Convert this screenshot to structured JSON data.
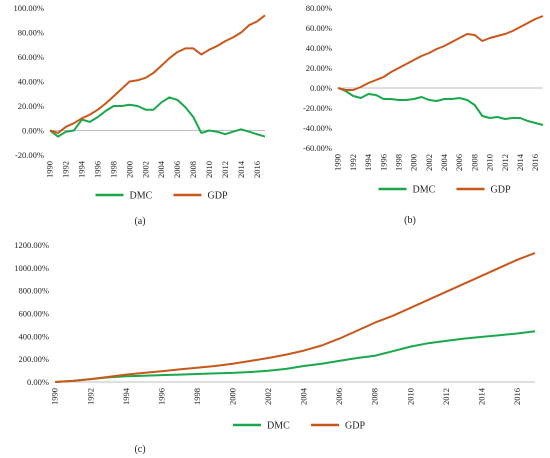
{
  "colors": {
    "DMC": "#1aa84a",
    "GDP": "#c8581a",
    "axis": "#bfbfbf",
    "text": "#222222"
  },
  "chart_data": [
    {
      "type": "line",
      "panel_label": "(a)",
      "x": [
        1990,
        1991,
        1992,
        1993,
        1994,
        1995,
        1996,
        1997,
        1998,
        1999,
        2000,
        2001,
        2002,
        2003,
        2004,
        2005,
        2006,
        2007,
        2008,
        2009,
        2010,
        2011,
        2012,
        2013,
        2014,
        2015,
        2016,
        2017
      ],
      "ylim": [
        -20,
        100
      ],
      "yticks": [
        -20,
        0,
        20,
        40,
        60,
        80,
        100
      ],
      "ytick_labels": [
        "-20.00%",
        "0.00%",
        "20.00%",
        "40.00%",
        "60.00%",
        "80.00%",
        "100.00%"
      ],
      "xtick_labels": [
        "1990",
        "1992",
        "1994",
        "1996",
        "1998",
        "2000",
        "2002",
        "2004",
        "2006",
        "2008",
        "2010",
        "2012",
        "2014",
        "2016"
      ],
      "legend": [
        "DMC",
        "GDP"
      ],
      "legend_position": "bottom",
      "series": [
        {
          "name": "DMC",
          "values": [
            0,
            -5,
            -1,
            0,
            9,
            7,
            11,
            16,
            20,
            20,
            21,
            20,
            17,
            17,
            23,
            27,
            25,
            19,
            11,
            -2,
            0,
            -1,
            -3,
            -1,
            1,
            -1,
            -3,
            -5
          ]
        },
        {
          "name": "GDP",
          "values": [
            0,
            -2,
            3,
            6,
            10,
            13,
            17,
            22,
            28,
            34,
            40,
            41,
            43,
            47,
            53,
            59,
            64,
            67,
            67,
            62,
            66,
            69,
            73,
            76,
            80,
            86,
            89,
            94
          ]
        }
      ]
    },
    {
      "type": "line",
      "panel_label": "(b)",
      "x": [
        1990,
        1991,
        1992,
        1993,
        1994,
        1995,
        1996,
        1997,
        1998,
        1999,
        2000,
        2001,
        2002,
        2003,
        2004,
        2005,
        2006,
        2007,
        2008,
        2009,
        2010,
        2011,
        2012,
        2013,
        2014,
        2015,
        2016,
        2017
      ],
      "ylim": [
        -60,
        80
      ],
      "yticks": [
        -60,
        -40,
        -20,
        0,
        20,
        40,
        60,
        80
      ],
      "ytick_labels": [
        "-60.00%",
        "-40.00%",
        "-20.00%",
        "0.00%",
        "20.00%",
        "40.00%",
        "60.00%",
        "80.00%"
      ],
      "xtick_labels": [
        "1990",
        "1992",
        "1994",
        "1996",
        "1998",
        "2000",
        "2002",
        "2004",
        "2006",
        "2008",
        "2010",
        "2012",
        "2014",
        "2016"
      ],
      "legend": [
        "DMC",
        "GDP"
      ],
      "legend_position": "bottom",
      "series": [
        {
          "name": "DMC",
          "values": [
            0,
            -3,
            -8,
            -10,
            -6,
            -7,
            -11,
            -11,
            -12,
            -12,
            -11,
            -9,
            -12,
            -13,
            -11,
            -11,
            -10,
            -12,
            -17,
            -28,
            -30,
            -29,
            -31,
            -30,
            -30,
            -33,
            -35,
            -37
          ]
        },
        {
          "name": "GDP",
          "values": [
            0,
            -2,
            -2,
            1,
            5,
            8,
            11,
            16,
            20,
            24,
            28,
            32,
            35,
            39,
            42,
            46,
            50,
            54,
            53,
            47,
            50,
            52,
            54,
            57,
            61,
            65,
            69,
            72
          ]
        }
      ]
    },
    {
      "type": "line",
      "panel_label": "(c)",
      "x": [
        1990,
        1991,
        1992,
        1993,
        1994,
        1995,
        1996,
        1997,
        1998,
        1999,
        2000,
        2001,
        2002,
        2003,
        2004,
        2005,
        2006,
        2007,
        2008,
        2009,
        2010,
        2011,
        2012,
        2013,
        2014,
        2015,
        2016,
        2017
      ],
      "ylim": [
        0,
        1200
      ],
      "yticks": [
        0,
        200,
        400,
        600,
        800,
        1000,
        1200
      ],
      "ytick_labels": [
        "0.00%",
        "200.00%",
        "400.00%",
        "600.00%",
        "800.00%",
        "1000.00%",
        "1200.00%"
      ],
      "xtick_labels": [
        "1990",
        "1992",
        "1994",
        "1996",
        "1998",
        "2000",
        "2002",
        "2004",
        "2006",
        "2008",
        "2010",
        "2012",
        "2014",
        "2016"
      ],
      "legend": [
        "DMC",
        "GDP"
      ],
      "legend_position": "bottom",
      "series": [
        {
          "name": "DMC",
          "values": [
            0,
            10,
            25,
            40,
            50,
            55,
            60,
            65,
            70,
            75,
            80,
            88,
            98,
            115,
            140,
            160,
            185,
            210,
            230,
            270,
            310,
            340,
            360,
            380,
            395,
            410,
            425,
            445
          ]
        },
        {
          "name": "GDP",
          "values": [
            0,
            10,
            25,
            45,
            65,
            80,
            95,
            110,
            125,
            140,
            160,
            185,
            210,
            240,
            275,
            320,
            380,
            450,
            520,
            580,
            650,
            720,
            790,
            860,
            930,
            1000,
            1070,
            1130
          ]
        }
      ]
    }
  ]
}
